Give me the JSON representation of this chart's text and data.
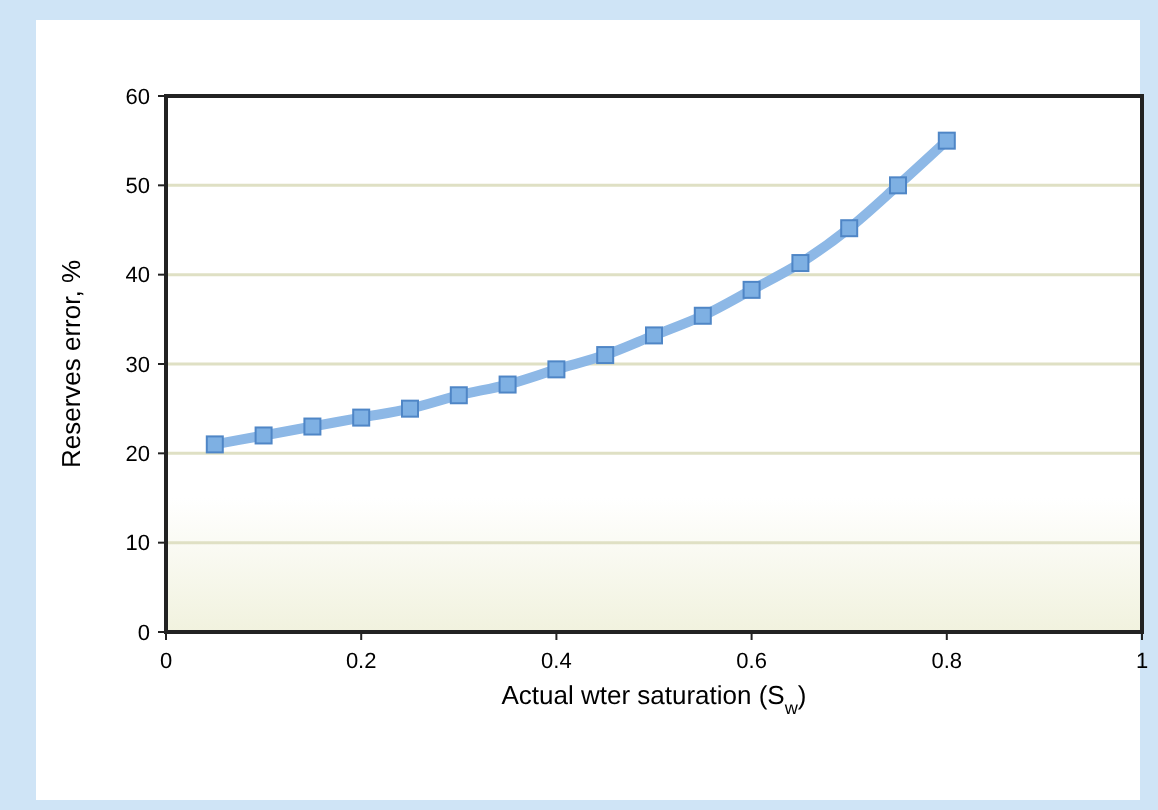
{
  "chart_data": {
    "type": "line",
    "xlabel": "Actual wter saturation (S$_{w}$)",
    "ylabel": "Reserves error, %",
    "x": [
      0.05,
      0.1,
      0.15,
      0.2,
      0.25,
      0.3,
      0.35,
      0.4,
      0.45,
      0.5,
      0.55,
      0.6,
      0.65,
      0.7,
      0.75,
      0.8
    ],
    "series": [
      {
        "color": "#8db8e6",
        "values": [
          21,
          22,
          23,
          24,
          25,
          26.5,
          27.7,
          29.4,
          31,
          33.2,
          35.4,
          38.3,
          41.3,
          45.2,
          50,
          55
        ]
      }
    ],
    "xlim": [
      0,
      1
    ],
    "xticks": [
      0,
      0.2,
      0.4,
      0.6,
      0.8,
      1
    ],
    "ylim": [
      0,
      60
    ],
    "yticks": [
      0,
      10,
      20,
      30,
      40,
      50,
      60
    ],
    "grid": "y",
    "marker": "square",
    "line_style": "solid"
  }
}
